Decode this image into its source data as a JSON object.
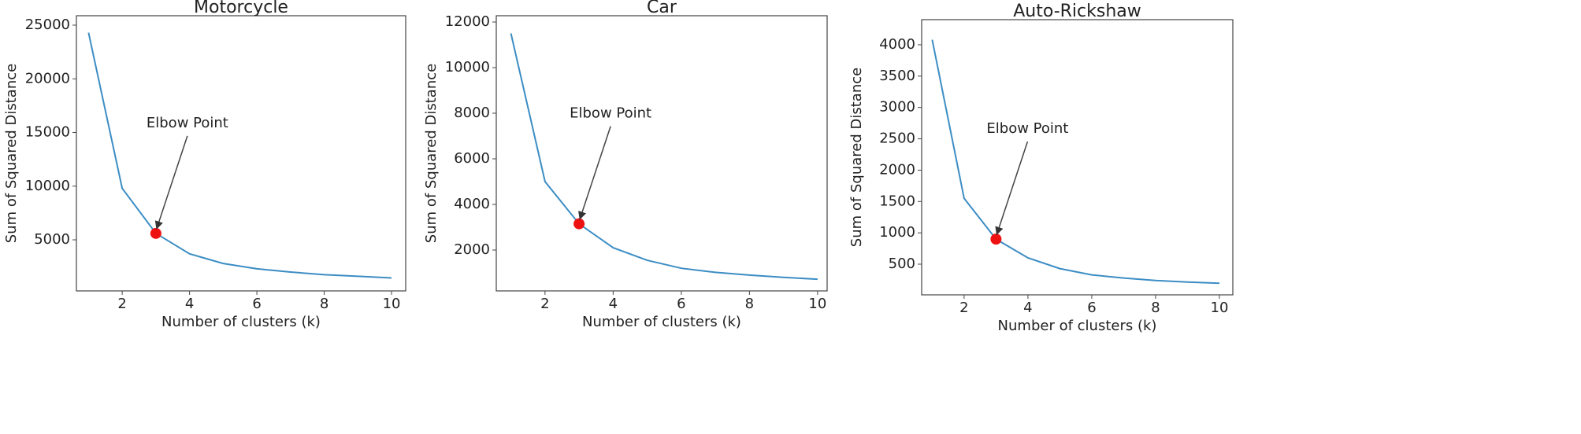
{
  "chart_data": [
    {
      "type": "line",
      "title": "Motorcycle",
      "xlabel": "Number of clusters (k)",
      "ylabel": "Sum of Squared Distance",
      "x": [
        1,
        2,
        3,
        4,
        5,
        6,
        7,
        8,
        9,
        10
      ],
      "values": [
        24300,
        9800,
        5600,
        3700,
        2800,
        2300,
        2000,
        1750,
        1600,
        1450
      ],
      "color": "#3c8dc4",
      "xlim": [
        0.64,
        10.42
      ],
      "ylim": [
        240,
        25880
      ],
      "xticks": [
        2,
        4,
        6,
        8,
        10
      ],
      "yticks": [
        5000,
        10000,
        15000,
        20000,
        25000
      ],
      "annotation": {
        "text": "Elbow Point",
        "x": 3,
        "y": 5600,
        "color": "#ee1111"
      }
    },
    {
      "type": "line",
      "title": "Car",
      "xlabel": "Number of clusters (k)",
      "ylabel": "Sum of Squared Distance",
      "x": [
        1,
        2,
        3,
        4,
        5,
        6,
        7,
        8,
        9,
        10
      ],
      "values": [
        11500,
        5000,
        3150,
        2100,
        1550,
        1200,
        1020,
        900,
        800,
        720
      ],
      "color": "#3c8dc4",
      "xlim": [
        0.57,
        10.28
      ],
      "ylim": [
        207,
        12276
      ],
      "xticks": [
        2,
        4,
        6,
        8,
        10
      ],
      "yticks": [
        2000,
        4000,
        6000,
        8000,
        10000,
        12000
      ],
      "annotation": {
        "text": "Elbow Point",
        "x": 3,
        "y": 3150,
        "color": "#ee1111"
      }
    },
    {
      "type": "line",
      "title": "Auto-Rickshaw",
      "xlabel": "Number of clusters (k)",
      "ylabel": "Sum of Squared Distance",
      "x": [
        1,
        2,
        3,
        4,
        5,
        6,
        7,
        8,
        9,
        10
      ],
      "values": [
        4080,
        1550,
        900,
        600,
        430,
        330,
        280,
        240,
        215,
        195
      ],
      "color": "#3c8dc4",
      "xlim": [
        0.67,
        10.42
      ],
      "ylim": [
        11,
        4401
      ],
      "xticks": [
        2,
        4,
        6,
        8,
        10
      ],
      "yticks": [
        500,
        1000,
        1500,
        2000,
        2500,
        3000,
        3500,
        4000
      ],
      "annotation": {
        "text": "Elbow Point",
        "x": 3,
        "y": 900,
        "color": "#ee1111"
      }
    }
  ]
}
